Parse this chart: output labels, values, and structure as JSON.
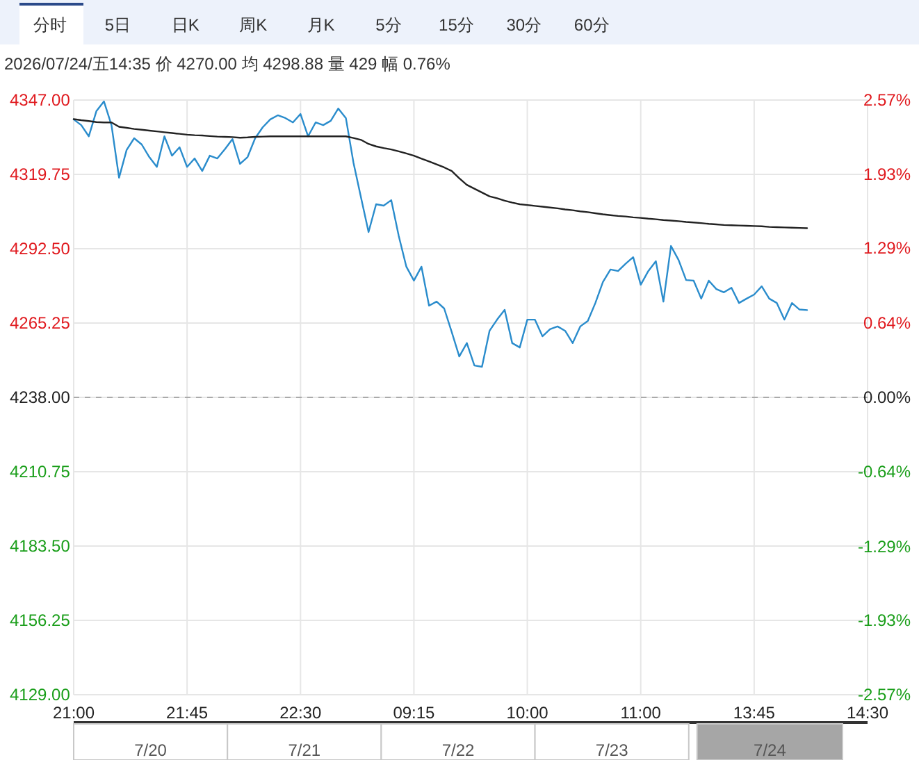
{
  "chart_data": [
    {
      "type": "line",
      "subtitle": "2026/07/24/五14:35  价 4270.00  均 4298.88  量 429  幅 0.76%",
      "annotations": [
        "分时",
        "5日",
        "日K",
        "周K",
        "月K",
        "5分",
        "15分",
        "30分",
        "60分"
      ],
      "categories": [
        "21:00",
        null,
        null,
        null,
        null,
        null,
        null,
        null,
        null,
        null,
        null,
        null,
        null,
        null,
        null,
        "21:45",
        null,
        null,
        null,
        null,
        null,
        null,
        null,
        null,
        null,
        null,
        null,
        null,
        null,
        null,
        "22:30",
        null,
        null,
        null,
        null,
        null,
        null,
        null,
        null,
        null,
        null,
        null,
        null,
        null,
        null,
        "09:15",
        null,
        null,
        null,
        null,
        null,
        null,
        null,
        null,
        null,
        null,
        null,
        null,
        null,
        null,
        "10:00",
        null,
        null,
        null,
        null,
        null,
        null,
        null,
        null,
        null,
        null,
        null,
        null,
        null,
        null,
        "11:00",
        null,
        null,
        null,
        null,
        null,
        null,
        null,
        null,
        null,
        null,
        null,
        null,
        null,
        null,
        "13:45",
        null,
        null,
        null,
        null,
        null,
        null,
        null,
        null,
        null,
        null,
        null,
        null,
        null,
        null,
        "14:30"
      ],
      "ylim": [
        4129,
        4347
      ],
      "yticks": [
        {
          "value": 4347,
          "label": "4347.00"
        },
        {
          "value": 4319.75,
          "label": "4319.75"
        },
        {
          "value": 4292.5,
          "label": "4292.50"
        },
        {
          "value": 4265.25,
          "label": "4265.25"
        },
        {
          "value": 4238,
          "label": "4238.00"
        },
        {
          "value": 4210.75,
          "label": "4210.75"
        },
        {
          "value": 4183.5,
          "label": "4183.50"
        },
        {
          "value": 4156.25,
          "label": "4156.25"
        },
        {
          "value": 4129,
          "label": "4129.00"
        }
      ],
      "y2lim": [
        -2.57,
        2.57
      ],
      "y2ticks": [
        {
          "value": 2.57,
          "label": "2.57%"
        },
        {
          "value": 1.93,
          "label": "1.93%"
        },
        {
          "value": 1.29,
          "label": "1.29%"
        },
        {
          "value": 0.64,
          "label": "0.64%"
        },
        {
          "value": 0,
          "label": "0.00%"
        },
        {
          "value": -0.64,
          "label": "-0.64%"
        },
        {
          "value": -1.29,
          "label": "-1.29%"
        },
        {
          "value": -1.93,
          "label": "-1.93%"
        },
        {
          "value": -2.57,
          "label": "-2.57%"
        }
      ],
      "grid": true,
      "ref_lines": [
        {
          "axis": "y",
          "value": 4238,
          "color": "#aaaaaa",
          "line_style": "dashed"
        }
      ],
      "series": [
        {
          "color": "#2a8ccc",
          "values": [
            4339.9,
            4337.8,
            4333.7,
            4342.9,
            4346.5,
            4337.8,
            4318.5,
            4328.7,
            4333.0,
            4330.7,
            4326.1,
            4322.5,
            4333.7,
            4326.6,
            4329.7,
            4322.5,
            4325.6,
            4321.0,
            4326.6,
            4325.6,
            4329.0,
            4332.7,
            4323.6,
            4326.1,
            4333.0,
            4337.0,
            4339.9,
            4341.4,
            4340.4,
            4338.8,
            4341.9,
            4333.7,
            4338.8,
            4337.8,
            4339.4,
            4343.9,
            4340.4,
            4324.1,
            4311.3,
            4298.6,
            4308.8,
            4308.3,
            4310.3,
            4297.1,
            4285.9,
            4280.8,
            4285.9,
            4271.6,
            4273.1,
            4270.6,
            4262.0,
            4253.0,
            4257.9,
            4249.7,
            4249.2,
            4262.4,
            4266.5,
            4270.1,
            4257.9,
            4256.3,
            4266.5,
            4266.5,
            4260.4,
            4263.0,
            4264.0,
            4262.4,
            4257.9,
            4264.0,
            4266.0,
            4272.6,
            4280.3,
            4284.9,
            4284.3,
            4287.0,
            4289.4,
            4279.3,
            4284.3,
            4287.9,
            4273.1,
            4293.5,
            4288.4,
            4281.0,
            4280.8,
            4274.2,
            4280.8,
            4277.7,
            4276.5,
            4278.2,
            4272.6,
            4274.2,
            4275.7,
            4278.7,
            4274.2,
            4272.6,
            4266.5,
            4272.6,
            4270.2,
            4270.0,
            null,
            null,
            null,
            null,
            null,
            null,
            null,
            null
          ]
        },
        {
          "color": "#222222",
          "values": [
            4340.0,
            4339.6,
            4339.3,
            4338.9,
            4338.8,
            4338.8,
            4337.2,
            4336.8,
            4336.4,
            4336.1,
            4335.8,
            4335.5,
            4335.2,
            4334.9,
            4334.6,
            4334.3,
            4334.1,
            4334.0,
            4333.8,
            4333.6,
            4333.5,
            4333.4,
            4333.2,
            4333.3,
            4333.5,
            4333.6,
            4333.7,
            4333.7,
            4333.7,
            4333.7,
            4333.7,
            4333.7,
            4333.7,
            4333.7,
            4333.7,
            4333.7,
            4333.7,
            4333.1,
            4332.4,
            4330.9,
            4330.0,
            4329.4,
            4328.9,
            4328.2,
            4327.4,
            4326.6,
            4325.5,
            4324.5,
            4323.4,
            4322.3,
            4321.0,
            4318.3,
            4315.9,
            4314.5,
            4313.1,
            4311.7,
            4311.0,
            4310.1,
            4309.4,
            4308.8,
            4308.5,
            4308.2,
            4307.9,
            4307.6,
            4307.3,
            4306.9,
            4306.6,
            4306.2,
            4305.9,
            4305.5,
            4305.1,
            4304.8,
            4304.5,
            4304.3,
            4304.0,
            4303.8,
            4303.5,
            4303.3,
            4303.0,
            4302.8,
            4302.6,
            4302.3,
            4302.1,
            4301.9,
            4301.6,
            4301.4,
            4301.2,
            4301.1,
            4301.0,
            4300.9,
            4300.8,
            4300.7,
            4300.5,
            4300.4,
            4300.3,
            4300.2,
            4300.1,
            4300.0,
            null,
            null,
            null,
            null,
            null,
            null,
            null,
            null
          ]
        }
      ]
    },
    {
      "type": "other",
      "annotations": [
        "7/20",
        "7/21",
        "7/22",
        "7/23",
        "7/24"
      ]
    }
  ]
}
